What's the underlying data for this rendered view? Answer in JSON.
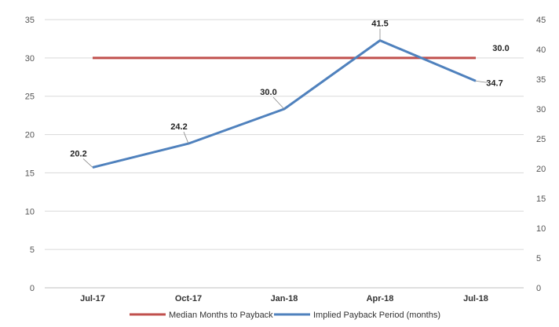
{
  "chart_data": {
    "type": "line",
    "categories": [
      "Jul-17",
      "Oct-17",
      "Jan-18",
      "Apr-18",
      "Jul-18"
    ],
    "left_axis": {
      "ylim": [
        0,
        35
      ],
      "ticks": [
        0,
        5,
        10,
        15,
        20,
        25,
        30,
        35
      ]
    },
    "right_axis": {
      "ylim": [
        0,
        45
      ],
      "ticks": [
        0,
        5,
        10,
        15,
        20,
        25,
        30,
        35,
        40,
        45
      ]
    },
    "grid": true,
    "legend_position": "bottom",
    "series": [
      {
        "name": "Median Months to Payback",
        "axis": "left",
        "color": "#c0504d",
        "values": [
          30.0,
          30.0,
          30.0,
          30.0,
          30.0
        ],
        "data_labels": [
          "",
          "",
          "",
          "",
          "30.0"
        ]
      },
      {
        "name": "Implied Payback Period (months)",
        "axis": "right",
        "color": "#4f81bd",
        "values": [
          20.2,
          24.2,
          30.0,
          41.5,
          34.7
        ],
        "data_labels": [
          "20.2",
          "24.2",
          "30.0",
          "41.5",
          "34.7"
        ]
      }
    ]
  }
}
